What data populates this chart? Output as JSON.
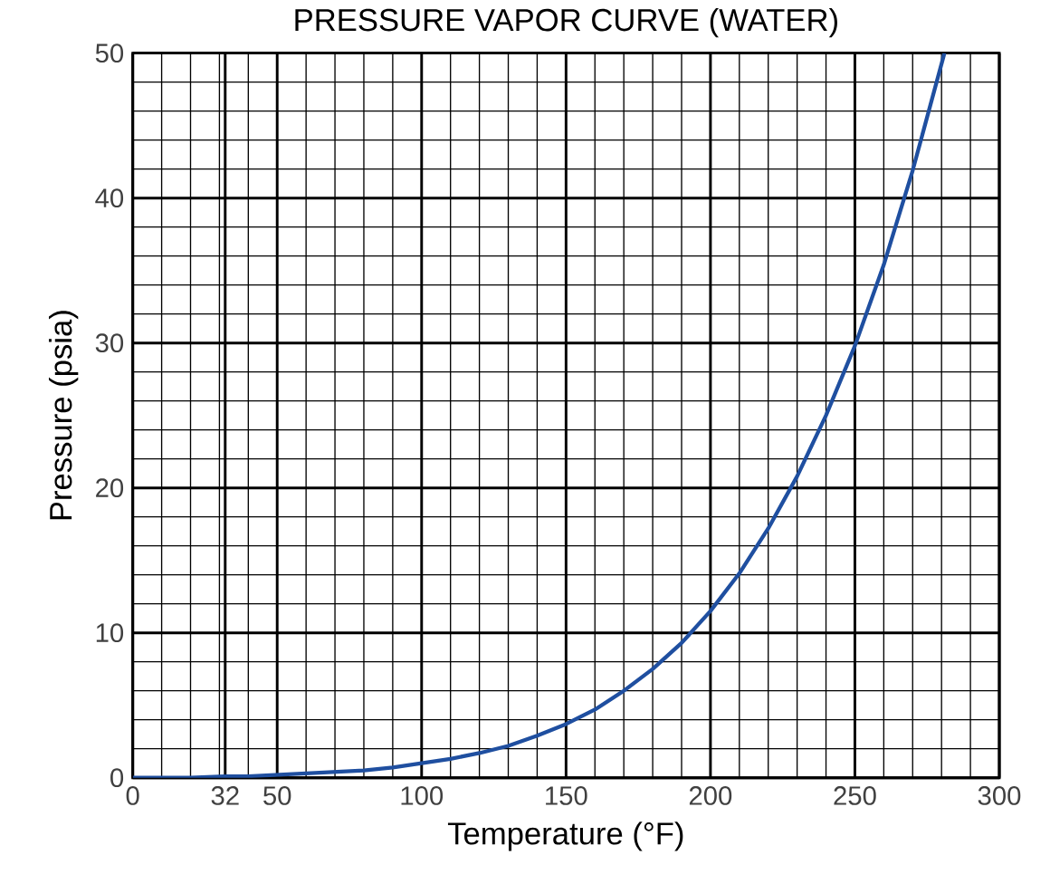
{
  "chart_data": {
    "type": "line",
    "title": "PRESSURE VAPOR CURVE (WATER)",
    "xlabel": "Temperature (°F)",
    "ylabel": "Pressure  (psia)",
    "x": [
      0,
      20,
      32,
      40,
      50,
      60,
      70,
      80,
      90,
      100,
      110,
      120,
      130,
      140,
      150,
      160,
      170,
      180,
      190,
      200,
      210,
      220,
      230,
      240,
      250,
      260,
      270,
      281
    ],
    "series": [
      {
        "color": "#1f4fa0",
        "values": [
          0,
          0,
          0.1,
          0.1,
          0.2,
          0.3,
          0.4,
          0.5,
          0.7,
          1,
          1.3,
          1.7,
          2.2,
          2.9,
          3.7,
          4.7,
          6,
          7.5,
          9.3,
          11.5,
          14.1,
          17.2,
          20.8,
          25,
          29.8,
          35.4,
          41.9,
          50
        ]
      }
    ],
    "xlim": [
      0,
      300
    ],
    "ylim": [
      0,
      50
    ],
    "xticks": [
      0,
      32,
      50,
      100,
      150,
      200,
      250,
      300
    ],
    "yticks": [
      0,
      10,
      20,
      30,
      40,
      50
    ],
    "grid": true,
    "marker": "none",
    "line_style": "solid"
  }
}
